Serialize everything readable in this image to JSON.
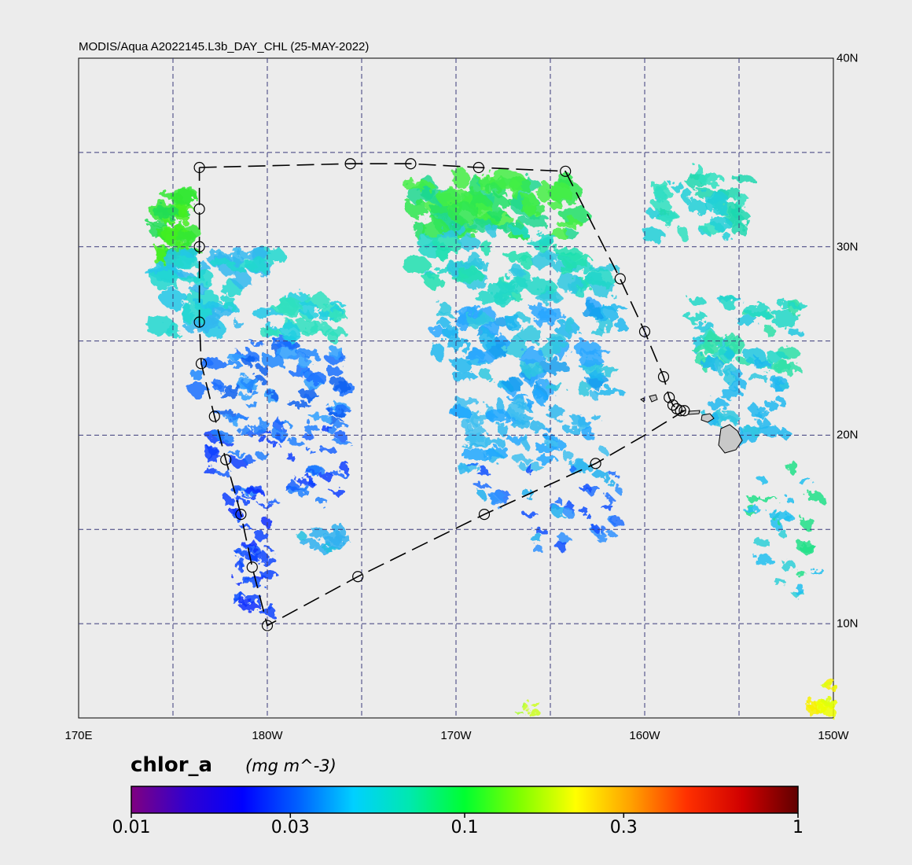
{
  "title": "MODIS/Aqua A2022145.L3b_DAY_CHL (25-MAY-2022)",
  "map": {
    "lon_min": -190,
    "lon_max": -150,
    "lat_min": 5,
    "lat_max": 40,
    "lon_labels": [
      {
        "lon": -190,
        "label": "170E"
      },
      {
        "lon": -180,
        "label": "180W"
      },
      {
        "lon": -170,
        "label": "170W"
      },
      {
        "lon": -160,
        "label": "160W"
      },
      {
        "lon": -150,
        "label": "150W"
      }
    ],
    "lat_labels": [
      {
        "lat": 40,
        "label": "40N"
      },
      {
        "lat": 30,
        "label": "30N"
      },
      {
        "lat": 20,
        "label": "20N"
      },
      {
        "lat": 10,
        "label": "10N"
      }
    ],
    "grid_lons": [
      -185,
      -180,
      -175,
      -170,
      -165,
      -160,
      -155
    ],
    "grid_lats": [
      35,
      30,
      25,
      20,
      15,
      10
    ],
    "colors": {
      "background": "#ececec",
      "grid": "#3a3a7a",
      "land": "#c8c8c8"
    }
  },
  "track": [
    [
      -183.6,
      34.2
    ],
    [
      -179.6,
      34.3
    ],
    [
      -175.6,
      34.4
    ],
    [
      -172.4,
      34.4
    ],
    [
      -168.8,
      34.2
    ],
    [
      -164.2,
      34.0
    ],
    [
      -161.3,
      28.3
    ],
    [
      -160.0,
      25.5
    ],
    [
      -159.0,
      23.1
    ],
    [
      -158.7,
      22.0
    ],
    [
      -158.5,
      21.6
    ],
    [
      -158.3,
      21.4
    ],
    [
      -158.1,
      21.3
    ],
    [
      -157.9,
      21.3
    ],
    [
      -160.0,
      20.0
    ],
    [
      -162.6,
      18.5
    ],
    [
      -168.5,
      15.8
    ],
    [
      -175.2,
      12.5
    ],
    [
      -180.0,
      9.9
    ],
    [
      -180.8,
      13.0
    ],
    [
      -181.4,
      15.8
    ],
    [
      -182.2,
      18.7
    ],
    [
      -182.8,
      21.0
    ],
    [
      -183.5,
      23.8
    ],
    [
      -183.6,
      26.0
    ],
    [
      -183.6,
      30.0
    ],
    [
      -183.6,
      32.0
    ],
    [
      -183.6,
      34.2
    ]
  ],
  "stations": [
    [
      -183.6,
      34.2
    ],
    [
      -175.6,
      34.4
    ],
    [
      -172.4,
      34.4
    ],
    [
      -168.8,
      34.2
    ],
    [
      -164.2,
      34.0
    ],
    [
      -161.3,
      28.3
    ],
    [
      -160.0,
      25.5
    ],
    [
      -159.0,
      23.1
    ],
    [
      -158.7,
      22.0
    ],
    [
      -158.5,
      21.6
    ],
    [
      -158.3,
      21.4
    ],
    [
      -158.1,
      21.3
    ],
    [
      -157.9,
      21.3
    ],
    [
      -162.6,
      18.5
    ],
    [
      -168.5,
      15.8
    ],
    [
      -175.2,
      12.5
    ],
    [
      -180.0,
      9.9
    ],
    [
      -180.8,
      13.0
    ],
    [
      -181.4,
      15.8
    ],
    [
      -182.2,
      18.7
    ],
    [
      -182.8,
      21.0
    ],
    [
      -183.5,
      23.8
    ],
    [
      -183.6,
      26.0
    ],
    [
      -183.6,
      30.0
    ],
    [
      -183.6,
      32.0
    ]
  ],
  "colorbar": {
    "variable": "chlor_a",
    "units": "(mg m^-3)",
    "min": 0.01,
    "max": 1,
    "scale": "log",
    "ticks": [
      {
        "value": 0.01,
        "label": "0.01"
      },
      {
        "value": 0.03,
        "label": "0.03"
      },
      {
        "value": 0.1,
        "label": "0.1"
      },
      {
        "value": 0.3,
        "label": "0.3"
      },
      {
        "value": 1,
        "label": "1"
      }
    ],
    "stops": [
      "#800080",
      "#3000d0",
      "#0000ff",
      "#0060ff",
      "#00d0ff",
      "#00e8b0",
      "#00ff30",
      "#80ff00",
      "#ffff00",
      "#ffa000",
      "#ff3000",
      "#d00000",
      "#600000"
    ]
  }
}
